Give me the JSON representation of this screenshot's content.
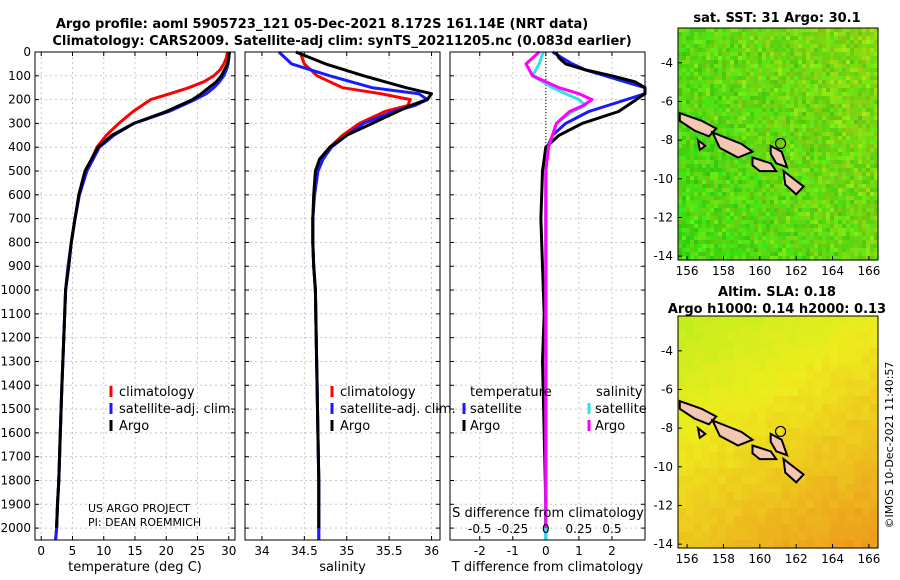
{
  "header": {
    "line1": "Argo profile: aoml 5905723_121 05-Dec-2021 8.172S 161.14E (NRT data)",
    "line2": "Climatology: CARS2009. Satellite-adj clim: synTS_20211205.nc (0.083d earlier)"
  },
  "colors": {
    "climatology": "#ff0000",
    "satellite": "#1a1aff",
    "argo": "#000000",
    "sat_cyan": "#33e0e6",
    "sat_magenta": "#ff00ff",
    "land": "#f4c8b0"
  },
  "chart_data": [
    {
      "id": "temperature",
      "type": "line",
      "xlabel": "temperature (deg C)",
      "ylabel": "",
      "xlim": [
        -1,
        31
      ],
      "ylim": [
        2050,
        0
      ],
      "xticks": [
        0,
        5,
        10,
        15,
        20,
        25,
        30
      ],
      "xtick_labels": [
        "0",
        "5",
        "10",
        "15",
        "20",
        "25",
        "30"
      ],
      "yticks": [
        0,
        100,
        200,
        300,
        400,
        500,
        600,
        700,
        800,
        900,
        1000,
        1100,
        1200,
        1300,
        1400,
        1500,
        1600,
        1700,
        1800,
        1900,
        2000
      ],
      "ytick_labels": [
        "0",
        "100",
        "200",
        "300",
        "400",
        "500",
        "600",
        "700",
        "800",
        "900",
        "1000",
        "1100",
        "1200",
        "1300",
        "1400",
        "1500",
        "1600",
        "1700",
        "1800",
        "1900",
        "2000"
      ],
      "legend": [
        "climatology",
        "satellite-adj. clim.",
        "Argo"
      ],
      "series": [
        {
          "name": "climatology",
          "color_key": "climatology",
          "x": [
            29.8,
            29.6,
            29.2,
            28.6,
            27.6,
            26.0,
            23.6,
            20.6,
            17.5,
            14.7,
            12.4,
            10.4,
            8.9,
            7.2,
            6.1,
            5.4,
            4.8,
            4.3,
            3.9,
            3.6,
            3.3,
            3.05,
            2.8,
            2.6,
            2.45,
            2.3
          ],
          "y": [
            0,
            25,
            50,
            75,
            100,
            125,
            150,
            175,
            200,
            250,
            300,
            350,
            400,
            500,
            600,
            700,
            800,
            900,
            1000,
            1200,
            1400,
            1600,
            1800,
            1900,
            2000,
            2050
          ]
        },
        {
          "name": "satellite-adj. clim.",
          "color_key": "satellite",
          "x": [
            30.1,
            30.0,
            29.9,
            29.6,
            29.2,
            28.5,
            27.6,
            26.4,
            24.6,
            20.4,
            14.8,
            11.6,
            9.3,
            7.3,
            6.1,
            5.4,
            4.8,
            4.3,
            3.9,
            3.6,
            3.3,
            3.05,
            2.8,
            2.6,
            2.45,
            2.3
          ],
          "y": [
            0,
            25,
            50,
            75,
            100,
            125,
            150,
            175,
            200,
            250,
            300,
            350,
            400,
            500,
            600,
            700,
            800,
            900,
            1000,
            1200,
            1400,
            1600,
            1800,
            1900,
            2000,
            2050
          ]
        },
        {
          "name": "Argo",
          "color_key": "argo",
          "x": [
            30.1,
            30.0,
            29.8,
            29.3,
            28.8,
            28.0,
            26.8,
            25.6,
            24.2,
            20.0,
            14.8,
            11.3,
            9.1,
            7.0,
            6.0,
            5.4,
            4.8,
            4.4,
            3.9,
            3.6,
            3.3,
            3.05,
            2.8,
            2.6,
            2.45
          ],
          "y": [
            0,
            25,
            50,
            75,
            100,
            125,
            150,
            175,
            200,
            250,
            300,
            350,
            400,
            500,
            600,
            700,
            800,
            900,
            1000,
            1200,
            1400,
            1600,
            1800,
            1900,
            2000
          ]
        }
      ]
    },
    {
      "id": "salinity",
      "type": "line",
      "xlabel": "salinity",
      "ylabel": "",
      "xlim": [
        33.8,
        36.1
      ],
      "ylim": [
        2050,
        0
      ],
      "xticks": [
        34,
        34.5,
        35,
        35.5,
        36
      ],
      "xtick_labels": [
        "34",
        "34.5",
        "35",
        "35.5",
        "36"
      ],
      "legend": [
        "climatology",
        "satellite-adj. clim.",
        "Argo"
      ],
      "series": [
        {
          "name": "climatology",
          "color_key": "climatology",
          "x": [
            34.45,
            34.5,
            34.65,
            34.95,
            35.4,
            35.75,
            35.72,
            35.45,
            35.15,
            34.95,
            34.8,
            34.72,
            34.66,
            34.62,
            34.6,
            34.6,
            34.61,
            34.63,
            34.64,
            34.65,
            34.66,
            34.67,
            34.67
          ],
          "y": [
            0,
            50,
            100,
            150,
            175,
            200,
            225,
            250,
            300,
            350,
            400,
            450,
            500,
            600,
            700,
            800,
            900,
            1000,
            1200,
            1400,
            1600,
            1800,
            2050
          ]
        },
        {
          "name": "satellite-adj. clim.",
          "color_key": "satellite",
          "x": [
            34.2,
            34.35,
            34.8,
            35.3,
            35.85,
            35.95,
            35.8,
            35.55,
            35.2,
            35.0,
            34.82,
            34.72,
            34.66,
            34.62,
            34.6,
            34.6,
            34.61,
            34.63,
            34.64,
            34.65,
            34.66,
            34.67,
            34.67
          ],
          "y": [
            0,
            50,
            100,
            150,
            175,
            200,
            225,
            250,
            300,
            350,
            400,
            450,
            500,
            600,
            700,
            800,
            900,
            1000,
            1200,
            1400,
            1600,
            1800,
            2050
          ]
        },
        {
          "name": "Argo",
          "color_key": "argo",
          "x": [
            34.4,
            34.75,
            35.2,
            35.7,
            36.0,
            35.95,
            35.75,
            35.6,
            35.3,
            35.0,
            34.8,
            34.68,
            34.63,
            34.61,
            34.6,
            34.6,
            34.61,
            34.63,
            34.64,
            34.65,
            34.66,
            34.67,
            34.67
          ],
          "y": [
            0,
            50,
            100,
            150,
            175,
            200,
            225,
            250,
            300,
            350,
            400,
            450,
            500,
            600,
            700,
            800,
            900,
            1000,
            1200,
            1400,
            1600,
            1800,
            2000
          ]
        }
      ]
    },
    {
      "id": "difference",
      "type": "line",
      "xlabel": "T difference from climatology",
      "xlabel_top": "S difference from climatology",
      "xlim": [
        -2.9,
        3.0
      ],
      "ylim": [
        2050,
        0
      ],
      "xticks": [
        -2,
        -1,
        0,
        1,
        2
      ],
      "xtick_labels": [
        "-2",
        "-1",
        "0",
        "1",
        "2"
      ],
      "s_xlim": [
        -0.725,
        0.75
      ],
      "s_xticks": [
        -0.5,
        -0.25,
        0.25,
        0.5
      ],
      "s_xtick_labels": [
        "-0.5",
        "-0.25",
        "0.25",
        "0.5"
      ],
      "s_zero_label": "0",
      "legend_temperature_header": "temperature",
      "legend_salinity_header": "salinity",
      "legend_temperature": [
        "satellite",
        "Argo"
      ],
      "legend_salinity": [
        "satellite",
        "Argo"
      ],
      "series": [
        {
          "name": "T satellite",
          "color_key": "satellite",
          "axis": "T",
          "x": [
            0.2,
            0.5,
            0.8,
            1.2,
            1.8,
            2.4,
            3.0,
            3.0,
            1.3,
            0.6,
            0.2,
            0.05,
            0.0,
            0.0,
            0.0,
            0.0,
            0.0,
            0.0,
            0.0,
            0.0
          ],
          "y": [
            0,
            25,
            50,
            75,
            100,
            125,
            150,
            175,
            250,
            300,
            350,
            400,
            450,
            500,
            700,
            1000,
            1300,
            1600,
            1900,
            2050
          ]
        },
        {
          "name": "T Argo",
          "color_key": "argo",
          "axis": "T",
          "x": [
            0.3,
            0.4,
            0.6,
            1.2,
            2.0,
            2.7,
            3.0,
            3.0,
            2.2,
            1.1,
            0.4,
            0.0,
            -0.05,
            -0.1,
            -0.15,
            -0.1,
            -0.05,
            -0.1,
            -0.05,
            0.0,
            0.0
          ],
          "y": [
            0,
            25,
            50,
            75,
            100,
            125,
            150,
            175,
            250,
            300,
            350,
            400,
            450,
            500,
            700,
            900,
            1100,
            1300,
            1600,
            1900,
            2000
          ]
        },
        {
          "name": "S satellite",
          "color_key": "sat_cyan",
          "axis": "S",
          "x": [
            -0.02,
            -0.05,
            -0.1,
            0.05,
            0.15,
            0.25,
            0.3,
            0.2,
            0.08,
            0.02,
            0.0,
            0.0,
            0.0,
            0.0
          ],
          "y": [
            0,
            50,
            100,
            150,
            175,
            200,
            225,
            250,
            300,
            400,
            500,
            800,
            1400,
            2050
          ]
        },
        {
          "name": "S Argo",
          "color_key": "sat_magenta",
          "axis": "S",
          "x": [
            -0.05,
            -0.15,
            -0.1,
            0.1,
            0.25,
            0.35,
            0.28,
            0.18,
            0.08,
            0.02,
            0.0,
            0.0,
            0.0,
            0.0
          ],
          "y": [
            0,
            50,
            100,
            150,
            175,
            200,
            225,
            250,
            300,
            400,
            500,
            800,
            1400,
            2000
          ]
        }
      ]
    }
  ],
  "maps": {
    "sst": {
      "title": "sat. SST: 31 Argo: 30.1",
      "xticks": [
        156,
        158,
        160,
        162,
        164,
        166
      ],
      "yticks": [
        -4,
        -6,
        -8,
        -10,
        -12,
        -14
      ],
      "xlim": [
        155.5,
        166.5
      ],
      "ylim": [
        -14.2,
        -2.2
      ],
      "argo_lon": 161.14,
      "argo_lat": -8.172
    },
    "sla": {
      "title_line1": "Altim. SLA: 0.18",
      "title_line2": "Argo h1000: 0.14 h2000: 0.13",
      "xticks": [
        156,
        158,
        160,
        162,
        164,
        166
      ],
      "yticks": [
        -4,
        -6,
        -8,
        -10,
        -12,
        -14
      ],
      "xlim": [
        155.5,
        166.5
      ],
      "ylim": [
        -14.2,
        -2.2
      ],
      "argo_lon": 161.14,
      "argo_lat": -8.172
    }
  },
  "credits": {
    "project": "US ARGO PROJECT",
    "pi": "PI: DEAN ROEMMICH",
    "stamp": "©IMOS 10-Dec-2021 11:40:57"
  }
}
